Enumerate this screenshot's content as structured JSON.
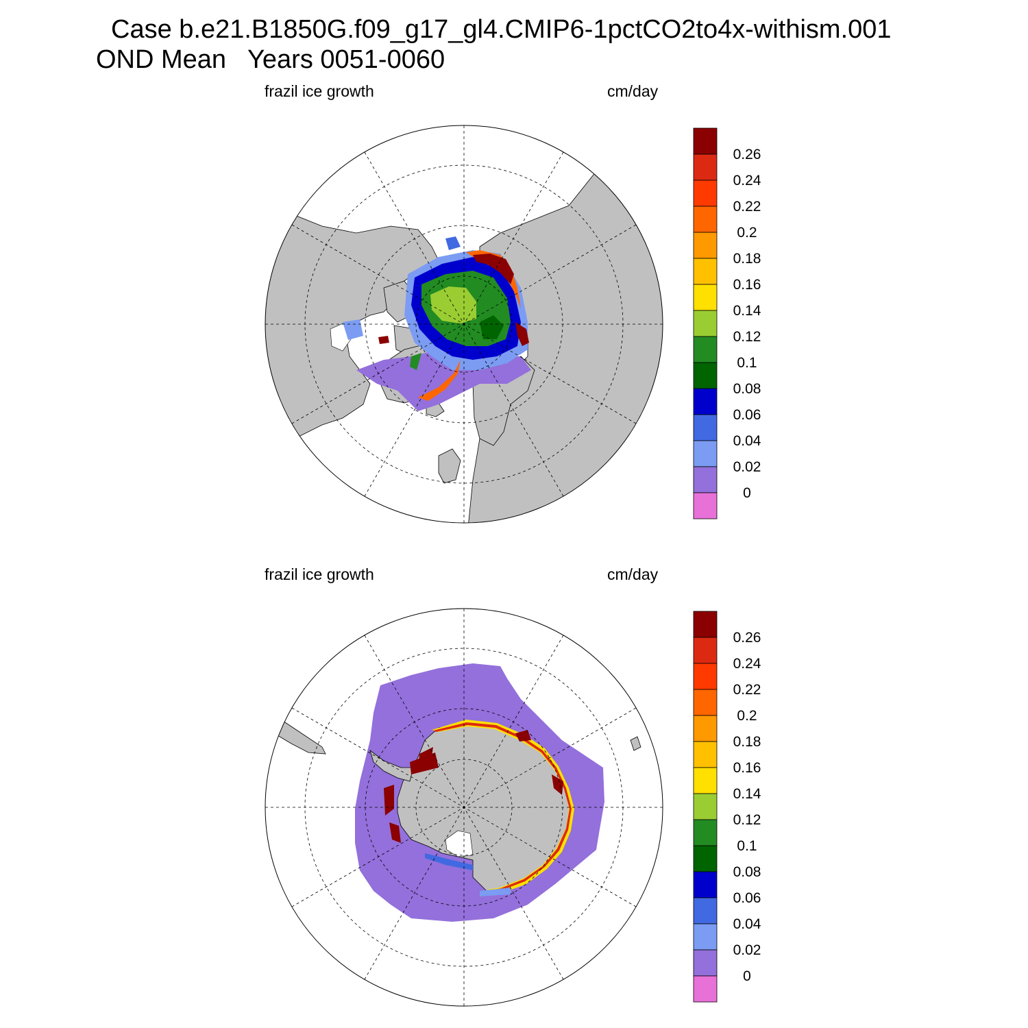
{
  "title": {
    "line1": "Case b.e21.B1850G.f09_g17_gl4.CMIP6-1pctCO2to4x-withism.001",
    "line2": "OND Mean   Years 0051-0060"
  },
  "panels": [
    {
      "id": "north",
      "hemisphere": "Arctic",
      "left_label": "frazil ice growth",
      "right_label": "cm/day"
    },
    {
      "id": "south",
      "hemisphere": "Antarctic",
      "left_label": "frazil ice growth",
      "right_label": "cm/day"
    }
  ],
  "colorbar": {
    "levels": [
      "0.26",
      "0.24",
      "0.22",
      "0.2",
      "0.18",
      "0.16",
      "0.14",
      "0.12",
      "0.1",
      "0.08",
      "0.06",
      "0.04",
      "0.02",
      "0"
    ],
    "colors": [
      "#8b0000",
      "#dc2a12",
      "#ff3a00",
      "#ff6600",
      "#ff9900",
      "#ffc000",
      "#ffe000",
      "#9acd32",
      "#228b22",
      "#006400",
      "#0000cd",
      "#4169e1",
      "#7b9cf2",
      "#9370db",
      "#e871d8"
    ]
  },
  "map_colors": {
    "land": "#c0c0c0",
    "ocean": "#ffffff",
    "grid": "#000000"
  }
}
